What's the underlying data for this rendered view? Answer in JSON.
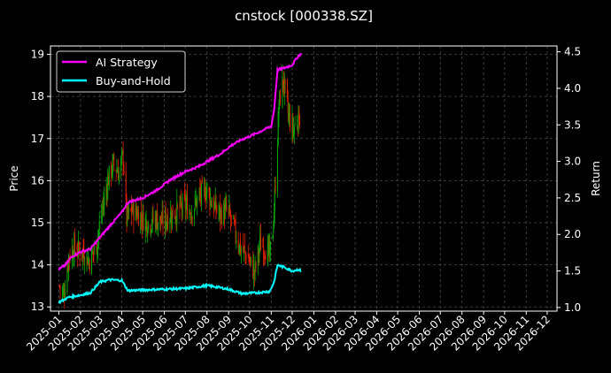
{
  "chart_data": {
    "type": "line",
    "title": "cnstock [000338.SZ]",
    "ylabel_left": "Price",
    "ylabel_right": "Return",
    "ylim_left": [
      12.9,
      19.2
    ],
    "ylim_right": [
      0.95,
      4.58
    ],
    "xlim": [
      "2024-12-20",
      "2026-12-15"
    ],
    "x_tick_labels": [
      "2025-01",
      "2025-02",
      "2025-03",
      "2025-04",
      "2025-05",
      "2025-06",
      "2025-07",
      "2025-08",
      "2025-09",
      "2025-10",
      "2025-11",
      "2025-12",
      "2026-01",
      "2026-02",
      "2026-03",
      "2026-04",
      "2026-05",
      "2026-06",
      "2026-07",
      "2026-08",
      "2026-09",
      "2026-10",
      "2026-11",
      "2026-12"
    ],
    "y_left_ticks": [
      13,
      14,
      15,
      16,
      17,
      18,
      19
    ],
    "y_right_ticks": [
      "1.0",
      "1.5",
      "2.0",
      "2.5",
      "3.0",
      "3.5",
      "4.0",
      "4.5"
    ],
    "y_right_tick_values": [
      1.0,
      1.5,
      2.0,
      2.5,
      3.0,
      3.5,
      4.0,
      4.5
    ],
    "y_left_tick_labels": [
      "13",
      "14",
      "15",
      "16",
      "17",
      "18",
      "19"
    ],
    "grid": true,
    "legend_position": "top-left",
    "colors": {
      "up": "#00aa00",
      "down": "#dd2200",
      "ai": "#ff00ff",
      "bh": "#00ffff",
      "background": "#000000",
      "grid": "#4a4a4a"
    },
    "candles_price_anchors": [
      [
        "2025-01-02",
        13.5
      ],
      [
        "2025-01-08",
        13.3
      ],
      [
        "2025-01-15",
        14.2
      ],
      [
        "2025-01-22",
        14.4
      ],
      [
        "2025-02-05",
        14.3
      ],
      [
        "2025-02-14",
        14.1
      ],
      [
        "2025-02-24",
        14.5
      ],
      [
        "2025-03-03",
        15.2
      ],
      [
        "2025-03-12",
        16.0
      ],
      [
        "2025-03-20",
        16.4
      ],
      [
        "2025-03-28",
        16.2
      ],
      [
        "2025-04-03",
        16.6
      ],
      [
        "2025-04-08",
        15.1
      ],
      [
        "2025-04-16",
        15.3
      ],
      [
        "2025-04-25",
        15.2
      ],
      [
        "2025-05-08",
        15.0
      ],
      [
        "2025-05-20",
        15.1
      ],
      [
        "2025-05-30",
        15.0
      ],
      [
        "2025-06-10",
        15.2
      ],
      [
        "2025-06-20",
        15.3
      ],
      [
        "2025-07-01",
        15.4
      ],
      [
        "2025-07-10",
        15.3
      ],
      [
        "2025-07-20",
        15.6
      ],
      [
        "2025-08-01",
        15.8
      ],
      [
        "2025-08-10",
        15.4
      ],
      [
        "2025-08-20",
        15.2
      ],
      [
        "2025-08-30",
        15.3
      ],
      [
        "2025-09-08",
        14.9
      ],
      [
        "2025-09-18",
        14.4
      ],
      [
        "2025-09-28",
        14.2
      ],
      [
        "2025-10-08",
        13.8
      ],
      [
        "2025-10-16",
        14.5
      ],
      [
        "2025-10-24",
        14.4
      ],
      [
        "2025-10-30",
        14.2
      ],
      [
        "2025-11-04",
        15.0
      ],
      [
        "2025-11-08",
        16.3
      ],
      [
        "2025-11-12",
        17.8
      ],
      [
        "2025-11-18",
        18.4
      ],
      [
        "2025-11-25",
        17.6
      ],
      [
        "2025-12-02",
        17.2
      ],
      [
        "2025-12-10",
        17.5
      ],
      [
        "2025-12-14",
        17.6
      ]
    ],
    "series": [
      {
        "name": "AI Strategy",
        "axis": "right",
        "x": [
          "2025-01-01",
          "2025-01-10",
          "2025-01-20",
          "2025-02-01",
          "2025-02-15",
          "2025-03-01",
          "2025-03-15",
          "2025-04-01",
          "2025-04-10",
          "2025-05-01",
          "2025-05-20",
          "2025-06-10",
          "2025-07-01",
          "2025-07-20",
          "2025-08-05",
          "2025-08-20",
          "2025-09-05",
          "2025-09-20",
          "2025-10-10",
          "2025-10-25",
          "2025-11-01",
          "2025-11-05",
          "2025-11-10",
          "2025-11-20",
          "2025-12-01",
          "2025-12-10",
          "2025-12-14"
        ],
        "values": [
          1.52,
          1.58,
          1.7,
          1.76,
          1.8,
          1.96,
          2.12,
          2.3,
          2.44,
          2.5,
          2.6,
          2.75,
          2.86,
          2.93,
          3.02,
          3.1,
          3.22,
          3.3,
          3.38,
          3.45,
          3.48,
          3.7,
          4.25,
          4.28,
          4.32,
          4.45,
          4.47
        ]
      },
      {
        "name": "Buy-and-Hold",
        "axis": "right",
        "x": [
          "2025-01-01",
          "2025-01-15",
          "2025-02-01",
          "2025-02-15",
          "2025-03-01",
          "2025-03-15",
          "2025-04-01",
          "2025-04-10",
          "2025-05-01",
          "2025-06-01",
          "2025-07-01",
          "2025-08-01",
          "2025-08-15",
          "2025-09-01",
          "2025-09-20",
          "2025-10-10",
          "2025-10-30",
          "2025-11-05",
          "2025-11-10",
          "2025-11-20",
          "2025-12-01",
          "2025-12-10",
          "2025-12-14"
        ],
        "values": [
          1.07,
          1.14,
          1.17,
          1.2,
          1.35,
          1.38,
          1.37,
          1.23,
          1.24,
          1.25,
          1.26,
          1.3,
          1.28,
          1.25,
          1.19,
          1.2,
          1.22,
          1.35,
          1.58,
          1.55,
          1.5,
          1.52,
          1.5
        ]
      }
    ]
  }
}
